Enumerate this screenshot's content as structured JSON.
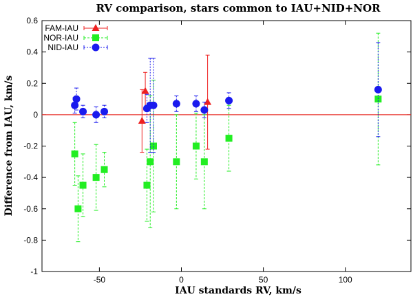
{
  "chart_data": {
    "type": "scatter",
    "title": "RV comparison, stars common to IAU+NID+NOR",
    "xlabel": "IAU standards RV, km/s",
    "ylabel": "Difference from IAU, km/s",
    "xlim": [
      -85,
      140
    ],
    "ylim": [
      -1,
      0.6
    ],
    "xticks": [
      -50,
      0,
      50,
      100
    ],
    "yticks": [
      -1,
      -0.8,
      -0.6,
      -0.4,
      -0.2,
      0,
      0.2,
      0.4,
      0.6
    ],
    "xtick_labels": [
      "-50",
      "0",
      "50",
      "100"
    ],
    "ytick_labels": [
      "-1",
      "-0.8",
      "-0.6",
      "-0.4",
      "-0.2",
      "0",
      "0.2",
      "0.4",
      "0.6"
    ],
    "grid": false,
    "legend_position": "top-left",
    "reference_line": {
      "y": 0,
      "color": "#e8302a"
    },
    "series": [
      {
        "name": "FAM-IAU",
        "marker": "triangle",
        "color": "#ee2020",
        "points": [
          {
            "x": -24,
            "y": -0.04,
            "err": 0.2
          },
          {
            "x": -22,
            "y": 0.15,
            "err": 0.12
          },
          {
            "x": 16,
            "y": 0.08,
            "err": 0.3
          }
        ]
      },
      {
        "name": "NOR-IAU",
        "marker": "square",
        "color": "#22ee22",
        "points": [
          {
            "x": -65,
            "y": -0.25,
            "err": 0.2
          },
          {
            "x": -63,
            "y": -0.6,
            "err": 0.21
          },
          {
            "x": -60,
            "y": -0.45,
            "err": 0.2
          },
          {
            "x": -52,
            "y": -0.4,
            "err": 0.21
          },
          {
            "x": -47,
            "y": -0.35,
            "err": 0.11
          },
          {
            "x": -21,
            "y": -0.45,
            "err": 0.23
          },
          {
            "x": -19,
            "y": -0.3,
            "err": 0.42
          },
          {
            "x": -17,
            "y": -0.2,
            "err": 0.42
          },
          {
            "x": -3,
            "y": -0.3,
            "err": 0.3
          },
          {
            "x": 9,
            "y": -0.2,
            "err": 0.21
          },
          {
            "x": 14,
            "y": -0.3,
            "err": 0.3
          },
          {
            "x": 29,
            "y": -0.15,
            "err": 0.21
          },
          {
            "x": 120,
            "y": 0.1,
            "err": 0.42
          }
        ]
      },
      {
        "name": "NID-IAU",
        "marker": "circle",
        "color": "#1a1aee",
        "points": [
          {
            "x": -65,
            "y": 0.06,
            "err": 0.05
          },
          {
            "x": -64,
            "y": 0.1,
            "err": 0.07
          },
          {
            "x": -60,
            "y": 0.02,
            "err": 0.04
          },
          {
            "x": -52,
            "y": 0.0,
            "err": 0.05
          },
          {
            "x": -47,
            "y": 0.02,
            "err": 0.04
          },
          {
            "x": -21,
            "y": 0.04,
            "err": 0.09
          },
          {
            "x": -19,
            "y": 0.06,
            "err": 0.3
          },
          {
            "x": -17,
            "y": 0.06,
            "err": 0.3
          },
          {
            "x": -3,
            "y": 0.07,
            "err": 0.05
          },
          {
            "x": 9,
            "y": 0.07,
            "err": 0.05
          },
          {
            "x": 14,
            "y": 0.03,
            "err": 0.05
          },
          {
            "x": 29,
            "y": 0.09,
            "err": 0.05
          },
          {
            "x": 120,
            "y": 0.16,
            "err": 0.3
          }
        ]
      }
    ]
  }
}
